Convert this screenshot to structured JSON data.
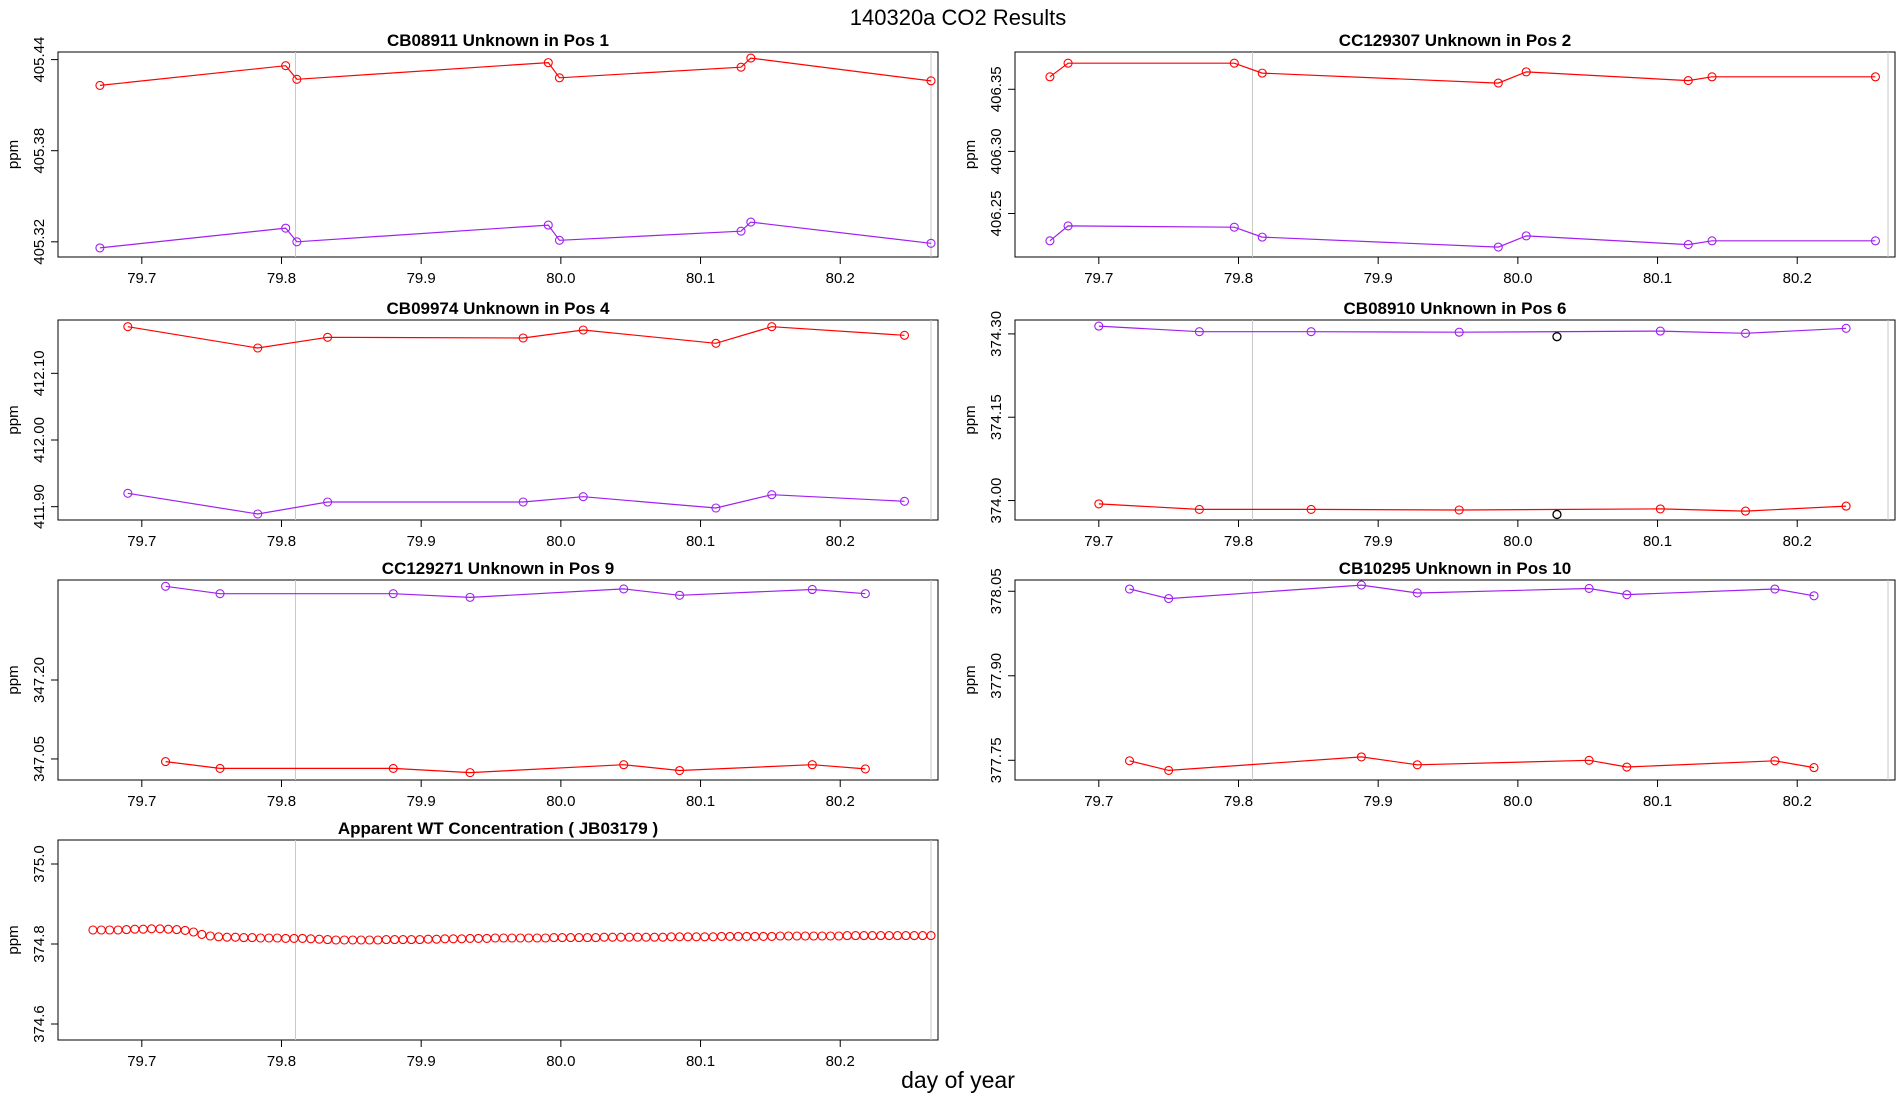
{
  "figure": {
    "title": "140320a  CO2 Results",
    "xlabel": "day of year"
  },
  "chart_data": [
    {
      "type": "line",
      "title": "CB08911    Unknown in Pos 1",
      "xlabel": "",
      "ylabel": "ppm",
      "xlim": [
        79.64,
        80.27
      ],
      "ylim": [
        405.31,
        405.445
      ],
      "xticks": [
        "79.7",
        "79.8",
        "79.9",
        "80.0",
        "80.1",
        "80.2"
      ],
      "yticks": [
        "405.32",
        "405.38",
        "405.44"
      ],
      "vlines": [
        79.81,
        80.265
      ],
      "series": [
        {
          "color": "#ff0000",
          "x": [
            79.67,
            79.803,
            79.811,
            79.991,
            79.999,
            80.129,
            80.136,
            80.265
          ],
          "y": [
            405.423,
            405.436,
            405.427,
            405.438,
            405.428,
            405.435,
            405.441,
            405.426
          ]
        },
        {
          "color": "#a020f0",
          "x": [
            79.67,
            79.803,
            79.811,
            79.991,
            79.999,
            80.129,
            80.136,
            80.265
          ],
          "y": [
            405.316,
            405.329,
            405.32,
            405.331,
            405.321,
            405.327,
            405.333,
            405.319
          ]
        }
      ]
    },
    {
      "type": "line",
      "title": "CC129307    Unknown in Pos 2",
      "xlabel": "",
      "ylabel": "ppm",
      "xlim": [
        79.64,
        80.27
      ],
      "ylim": [
        406.215,
        406.38
      ],
      "xticks": [
        "79.7",
        "79.8",
        "79.9",
        "80.0",
        "80.1",
        "80.2"
      ],
      "yticks": [
        "406.25",
        "406.30",
        "406.35"
      ],
      "vlines": [
        79.81,
        80.265
      ],
      "series": [
        {
          "color": "#ff0000",
          "x": [
            79.665,
            79.678,
            79.797,
            79.817,
            79.986,
            80.006,
            80.122,
            80.139,
            80.256
          ],
          "y": [
            406.36,
            406.371,
            406.371,
            406.363,
            406.355,
            406.364,
            406.357,
            406.36,
            406.36
          ]
        },
        {
          "color": "#a020f0",
          "x": [
            79.665,
            79.678,
            79.797,
            79.817,
            79.986,
            80.006,
            80.122,
            80.139,
            80.256
          ],
          "y": [
            406.228,
            406.24,
            406.239,
            406.231,
            406.223,
            406.232,
            406.225,
            406.228,
            406.228
          ]
        }
      ]
    },
    {
      "type": "line",
      "title": "CB09974    Unknown in Pos 4",
      "xlabel": "",
      "ylabel": "ppm",
      "xlim": [
        79.64,
        80.27
      ],
      "ylim": [
        411.88,
        412.18
      ],
      "xticks": [
        "79.7",
        "79.8",
        "79.9",
        "80.0",
        "80.1",
        "80.2"
      ],
      "yticks": [
        "411.90",
        "412.00",
        "412.10"
      ],
      "vlines": [
        79.81,
        80.265
      ],
      "series": [
        {
          "color": "#ff0000",
          "x": [
            79.69,
            79.783,
            79.833,
            79.973,
            80.016,
            80.111,
            80.151,
            80.246
          ],
          "y": [
            412.17,
            412.138,
            412.154,
            412.153,
            412.165,
            412.145,
            412.17,
            412.157
          ]
        },
        {
          "color": "#a020f0",
          "x": [
            79.69,
            79.783,
            79.833,
            79.973,
            80.016,
            80.111,
            80.151,
            80.246
          ],
          "y": [
            411.92,
            411.889,
            411.907,
            411.907,
            411.915,
            411.898,
            411.918,
            411.908
          ]
        }
      ]
    },
    {
      "type": "line",
      "title": "CB08910    Unknown in Pos 6",
      "xlabel": "",
      "ylabel": "ppm",
      "xlim": [
        79.64,
        80.27
      ],
      "ylim": [
        373.965,
        374.325
      ],
      "xticks": [
        "79.7",
        "79.8",
        "79.9",
        "80.0",
        "80.1",
        "80.2"
      ],
      "yticks": [
        "374.00",
        "374.15",
        "374.30"
      ],
      "vlines": [
        79.81,
        80.265
      ],
      "series": [
        {
          "color": "#a020f0",
          "x": [
            79.7,
            79.772,
            79.852,
            79.958,
            80.102,
            80.163,
            80.235
          ],
          "y": [
            374.314,
            374.304,
            374.304,
            374.303,
            374.305,
            374.301,
            374.31
          ]
        },
        {
          "color": "#ff0000",
          "x": [
            79.7,
            79.772,
            79.852,
            79.958,
            80.102,
            80.163,
            80.235
          ],
          "y": [
            373.994,
            373.984,
            373.984,
            373.983,
            373.985,
            373.981,
            373.99
          ]
        }
      ],
      "extra_points": [
        {
          "color": "#000000",
          "x": 80.028,
          "y": 374.295
        },
        {
          "color": "#000000",
          "x": 80.028,
          "y": 373.975
        }
      ]
    },
    {
      "type": "line",
      "title": "CC129271    Unknown in Pos 9",
      "xlabel": "",
      "ylabel": "ppm",
      "xlim": [
        79.64,
        80.27
      ],
      "ylim": [
        347.01,
        347.39
      ],
      "xticks": [
        "79.7",
        "79.8",
        "79.9",
        "80.0",
        "80.1",
        "80.2"
      ],
      "yticks": [
        "347.05",
        "347.20"
      ],
      "vlines": [
        79.81,
        80.265
      ],
      "series": [
        {
          "color": "#a020f0",
          "x": [
            79.717,
            79.756,
            79.88,
            79.935,
            80.045,
            80.085,
            80.18,
            80.218
          ],
          "y": [
            347.378,
            347.364,
            347.364,
            347.357,
            347.373,
            347.361,
            347.372,
            347.364
          ]
        },
        {
          "color": "#ff0000",
          "x": [
            79.717,
            79.756,
            79.88,
            79.935,
            80.045,
            80.085,
            80.18,
            80.218
          ],
          "y": [
            347.045,
            347.032,
            347.032,
            347.024,
            347.039,
            347.028,
            347.039,
            347.031
          ]
        }
      ]
    },
    {
      "type": "line",
      "title": "CB10295    Unknown in Pos 10",
      "xlabel": "",
      "ylabel": "ppm",
      "xlim": [
        79.64,
        80.27
      ],
      "ylim": [
        377.715,
        378.07
      ],
      "xticks": [
        "79.7",
        "79.8",
        "79.9",
        "80.0",
        "80.1",
        "80.2"
      ],
      "yticks": [
        "377.75",
        "377.90",
        "378.05"
      ],
      "vlines": [
        79.81,
        80.265
      ],
      "series": [
        {
          "color": "#a020f0",
          "x": [
            79.722,
            79.75,
            79.888,
            79.928,
            80.051,
            80.078,
            80.184,
            80.212
          ],
          "y": [
            378.054,
            378.037,
            378.061,
            378.047,
            378.055,
            378.044,
            378.054,
            378.042
          ]
        },
        {
          "color": "#ff0000",
          "x": [
            79.722,
            79.75,
            79.888,
            79.928,
            80.051,
            80.078,
            80.184,
            80.212
          ],
          "y": [
            377.749,
            377.732,
            377.756,
            377.742,
            377.75,
            377.738,
            377.749,
            377.737
          ]
        }
      ]
    },
    {
      "type": "scatter",
      "title": "Apparent WT Concentration ( JB03179 )",
      "xlabel": "",
      "ylabel": "ppm",
      "xlim": [
        79.64,
        80.27
      ],
      "ylim": [
        374.56,
        375.06
      ],
      "xticks": [
        "79.7",
        "79.8",
        "79.9",
        "80.0",
        "80.1",
        "80.2"
      ],
      "yticks": [
        "374.6",
        "374.8",
        "375.0"
      ],
      "vlines": [
        79.81,
        80.265
      ],
      "series": [
        {
          "color": "#ff0000",
          "x_start": 79.665,
          "x_step": 0.006,
          "y": [
            374.835,
            374.835,
            374.835,
            374.835,
            374.836,
            374.837,
            374.837,
            374.838,
            374.838,
            374.837,
            374.836,
            374.834,
            374.83,
            374.824,
            374.82,
            374.818,
            374.817,
            374.817,
            374.816,
            374.816,
            374.815,
            374.815,
            374.815,
            374.814,
            374.814,
            374.814,
            374.813,
            374.812,
            374.811,
            374.81,
            374.81,
            374.81,
            374.81,
            374.81,
            374.81,
            374.811,
            374.811,
            374.811,
            374.811,
            374.811,
            374.812,
            374.812,
            374.813,
            374.813,
            374.813,
            374.814,
            374.814,
            374.814,
            374.815,
            374.815,
            374.815,
            374.815,
            374.815,
            374.815,
            374.815,
            374.816,
            374.816,
            374.816,
            374.816,
            374.816,
            374.816,
            374.817,
            374.817,
            374.817,
            374.817,
            374.817,
            374.817,
            374.817,
            374.817,
            374.818,
            374.818,
            374.818,
            374.818,
            374.818,
            374.818,
            374.819,
            374.819,
            374.819,
            374.819,
            374.819,
            374.819,
            374.819,
            374.82,
            374.82,
            374.82,
            374.82,
            374.82,
            374.82,
            374.82,
            374.82,
            374.821,
            374.821,
            374.821,
            374.821,
            374.821,
            374.821,
            374.821,
            374.821,
            374.821,
            374.821,
            374.821
          ]
        }
      ]
    }
  ]
}
